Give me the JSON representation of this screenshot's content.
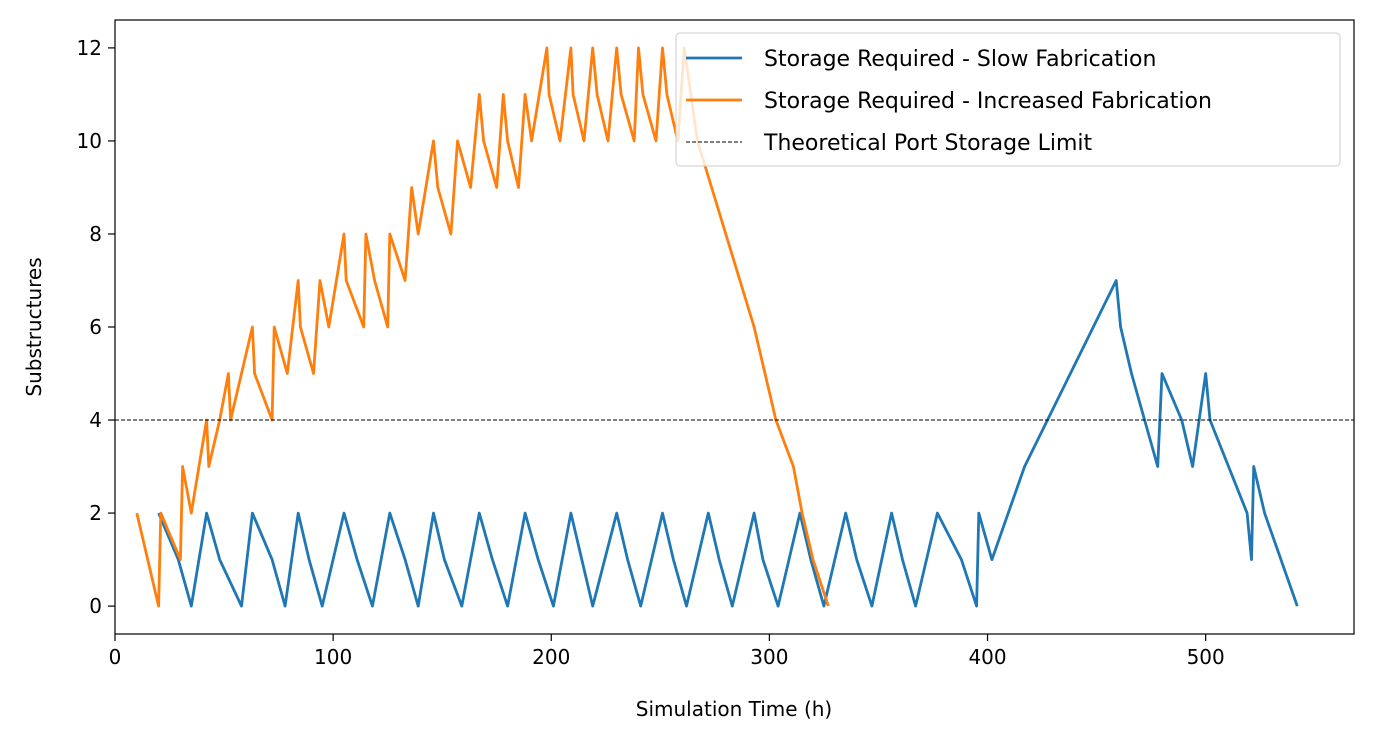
{
  "chart_data": {
    "type": "line",
    "xlabel": "Simulation Time (h)",
    "ylabel": "Substructures",
    "xlim": [
      0,
      568
    ],
    "ylim": [
      -0.6,
      12.6
    ],
    "x_ticks": [
      0,
      100,
      200,
      300,
      400,
      500
    ],
    "y_ticks": [
      0,
      2,
      4,
      6,
      8,
      10,
      12
    ],
    "grid": false,
    "legend_position": "top-right",
    "series": [
      {
        "name": "Storage Required - Slow Fabrication",
        "color": "#1f77b4",
        "line_style": "solid",
        "points": [
          [
            20,
            2
          ],
          [
            29,
            1
          ],
          [
            35,
            0
          ],
          [
            42,
            2
          ],
          [
            48,
            1
          ],
          [
            58,
            0
          ],
          [
            63,
            2
          ],
          [
            72,
            1
          ],
          [
            78,
            0
          ],
          [
            84,
            2
          ],
          [
            89,
            1
          ],
          [
            95,
            0
          ],
          [
            105,
            2
          ],
          [
            111,
            1
          ],
          [
            118,
            0
          ],
          [
            126,
            2
          ],
          [
            133,
            1
          ],
          [
            139,
            0
          ],
          [
            146,
            2
          ],
          [
            151,
            1
          ],
          [
            159,
            0
          ],
          [
            167,
            2
          ],
          [
            173,
            1
          ],
          [
            180,
            0
          ],
          [
            188,
            2
          ],
          [
            194,
            1
          ],
          [
            201,
            0
          ],
          [
            209,
            2
          ],
          [
            214,
            1
          ],
          [
            219,
            0
          ],
          [
            230,
            2
          ],
          [
            235,
            1
          ],
          [
            241,
            0
          ],
          [
            251,
            2
          ],
          [
            256,
            1
          ],
          [
            262,
            0
          ],
          [
            272,
            2
          ],
          [
            277,
            1
          ],
          [
            283,
            0
          ],
          [
            293,
            2
          ],
          [
            297,
            1
          ],
          [
            304,
            0
          ],
          [
            314,
            2
          ],
          [
            319,
            1
          ],
          [
            325,
            0
          ],
          [
            335,
            2
          ],
          [
            340,
            1
          ],
          [
            347,
            0
          ],
          [
            356,
            2
          ],
          [
            361,
            1
          ],
          [
            367,
            0
          ],
          [
            377,
            2
          ],
          [
            388,
            1
          ],
          [
            395,
            0
          ],
          [
            396,
            2
          ],
          [
            402,
            1
          ],
          [
            417,
            3
          ],
          [
            459,
            7
          ],
          [
            461,
            6
          ],
          [
            466,
            5
          ],
          [
            478,
            3
          ],
          [
            480,
            5
          ],
          [
            489,
            4
          ],
          [
            494,
            3
          ],
          [
            500,
            5
          ],
          [
            502,
            4
          ],
          [
            519,
            2
          ],
          [
            521,
            1
          ],
          [
            522,
            3
          ],
          [
            527,
            2
          ],
          [
            542,
            0
          ]
        ]
      },
      {
        "name": "Storage Required - Increased Fabrication",
        "color": "#ff7f0e",
        "line_style": "solid",
        "points": [
          [
            10,
            2
          ],
          [
            20,
            0
          ],
          [
            21,
            2
          ],
          [
            30,
            1
          ],
          [
            31,
            3
          ],
          [
            35,
            2
          ],
          [
            42,
            4
          ],
          [
            43,
            3
          ],
          [
            48,
            4
          ],
          [
            52,
            5
          ],
          [
            53,
            4
          ],
          [
            63,
            6
          ],
          [
            64,
            5
          ],
          [
            72,
            4
          ],
          [
            73,
            6
          ],
          [
            79,
            5
          ],
          [
            84,
            7
          ],
          [
            85,
            6
          ],
          [
            91,
            5
          ],
          [
            94,
            7
          ],
          [
            98,
            6
          ],
          [
            105,
            8
          ],
          [
            106,
            7
          ],
          [
            114,
            6
          ],
          [
            115,
            8
          ],
          [
            119,
            7
          ],
          [
            125,
            6
          ],
          [
            126,
            8
          ],
          [
            133,
            7
          ],
          [
            136,
            9
          ],
          [
            139,
            8
          ],
          [
            146,
            10
          ],
          [
            148,
            9
          ],
          [
            154,
            8
          ],
          [
            157,
            10
          ],
          [
            163,
            9
          ],
          [
            167,
            11
          ],
          [
            169,
            10
          ],
          [
            175,
            9
          ],
          [
            178,
            11
          ],
          [
            180,
            10
          ],
          [
            185,
            9
          ],
          [
            188,
            11
          ],
          [
            191,
            10
          ],
          [
            198,
            12
          ],
          [
            199,
            11
          ],
          [
            204,
            10
          ],
          [
            209,
            12
          ],
          [
            210,
            11
          ],
          [
            215,
            10
          ],
          [
            219,
            12
          ],
          [
            221,
            11
          ],
          [
            226,
            10
          ],
          [
            230,
            12
          ],
          [
            232,
            11
          ],
          [
            238,
            10
          ],
          [
            240,
            12
          ],
          [
            242,
            11
          ],
          [
            248,
            10
          ],
          [
            251,
            12
          ],
          [
            253,
            11
          ],
          [
            258,
            10
          ],
          [
            261,
            12
          ],
          [
            267,
            10
          ],
          [
            280,
            8
          ],
          [
            293,
            6
          ],
          [
            303,
            4
          ],
          [
            311,
            3
          ],
          [
            315,
            2
          ],
          [
            320,
            1
          ],
          [
            327,
            0
          ]
        ]
      },
      {
        "name": "Theoretical Port Storage Limit",
        "color": "#000000",
        "line_style": "dashed",
        "y": 4
      }
    ]
  }
}
